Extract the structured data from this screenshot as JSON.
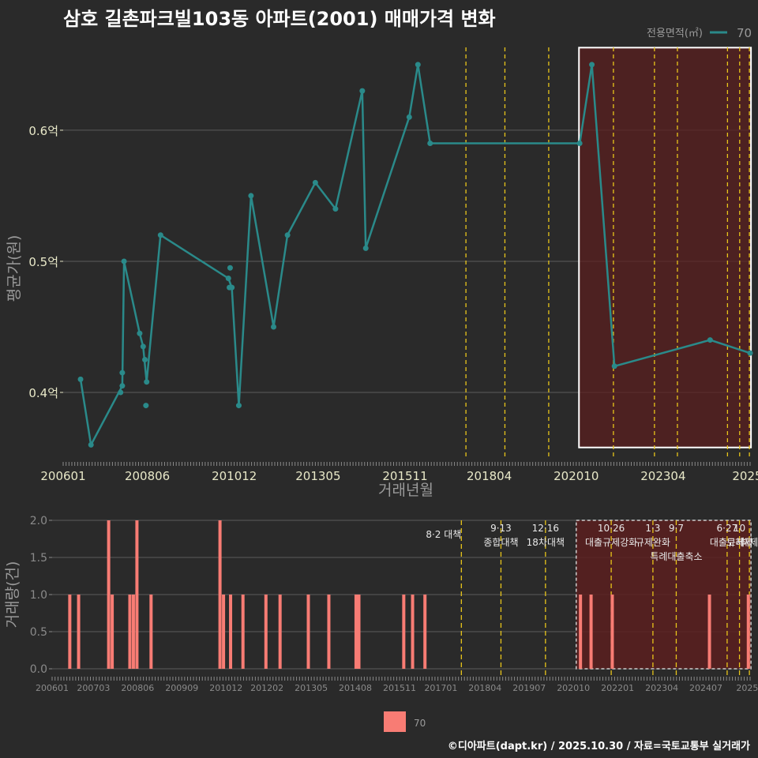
{
  "title": "삼호 길촌파크빌103동 아파트(2001) 매매가격 변화",
  "footer": "©디아파트(dapt.kr) / 2025.10.30 / 자료=국토교통부 실거래가",
  "colors": {
    "background": "#2a2a2a",
    "line": "#2a8a8a",
    "bar": "#f87c74",
    "highlight_fill": "#5a1f1f",
    "policy_line": "#e8c51a",
    "grid": "#5c5c5c",
    "axis_text": "#e8e8c8",
    "label_text": "#9a9a9a"
  },
  "chart_data": [
    {
      "type": "line",
      "name": "price",
      "ylabel": "평균가(원)",
      "xlabel": "거래년월",
      "legend_title": "전용면적(㎡)",
      "legend_label": "70",
      "xlim": [
        2006.0,
        2025.75
      ],
      "ylim": [
        0.35,
        0.665
      ],
      "yticks": [
        0.4,
        0.5,
        0.6
      ],
      "ytick_labels": [
        "0.4억",
        "0.5억",
        "0.6억"
      ],
      "xticks": [
        2006.0,
        2008.42,
        2010.92,
        2013.33,
        2015.83,
        2018.25,
        2020.75,
        2023.25,
        2025.67
      ],
      "xtick_labels": [
        "200601",
        "200806",
        "201012",
        "201305",
        "201511",
        "201804",
        "202010",
        "202304",
        "2025"
      ],
      "series_points": [
        [
          2006.5,
          0.41
        ],
        [
          2006.8,
          0.36
        ],
        [
          2007.7,
          0.405
        ],
        [
          2007.75,
          0.5
        ],
        [
          2008.2,
          0.445
        ],
        [
          2008.3,
          0.435
        ],
        [
          2008.4,
          0.408
        ],
        [
          2008.8,
          0.52
        ],
        [
          2010.75,
          0.487
        ],
        [
          2010.85,
          0.48
        ],
        [
          2011.05,
          0.39
        ],
        [
          2011.4,
          0.55
        ],
        [
          2012.05,
          0.45
        ],
        [
          2012.45,
          0.52
        ],
        [
          2013.25,
          0.56
        ],
        [
          2013.83,
          0.54
        ],
        [
          2014.6,
          0.63
        ],
        [
          2014.7,
          0.51
        ],
        [
          2015.95,
          0.61
        ],
        [
          2016.2,
          0.65
        ],
        [
          2016.55,
          0.59
        ],
        [
          2020.85,
          0.59
        ],
        [
          2021.2,
          0.65
        ],
        [
          2021.85,
          0.42
        ],
        [
          2024.6,
          0.44
        ],
        [
          2025.75,
          0.43
        ]
      ],
      "extra_points": [
        [
          2007.7,
          0.415
        ],
        [
          2007.65,
          0.4
        ],
        [
          2008.35,
          0.425
        ],
        [
          2008.38,
          0.39
        ],
        [
          2010.8,
          0.495
        ],
        [
          2010.78,
          0.48
        ]
      ],
      "policy_lines": [
        2017.58,
        2018.7,
        2019.96,
        2021.82,
        2023.0,
        2023.66,
        2025.1,
        2025.45,
        2025.73
      ],
      "highlight_range": [
        2020.83,
        2025.73
      ]
    },
    {
      "type": "bar",
      "name": "volume",
      "ylabel": "거래량(건)",
      "ylim": [
        0,
        2.0
      ],
      "yticks": [
        0.0,
        0.5,
        1.0,
        1.5,
        2.0
      ],
      "ytick_labels": [
        "0.0",
        "0.5",
        "1.0",
        "1.5",
        "2.0"
      ],
      "xtick_labels": [
        "200601",
        "200703",
        "200806",
        "200909",
        "201012",
        "201202",
        "201305",
        "201408",
        "201511",
        "201701",
        "201804",
        "201907",
        "202010",
        "202201",
        "202304",
        "202407",
        "2025"
      ],
      "xticks": [
        2006.0,
        2007.17,
        2008.42,
        2009.67,
        2010.92,
        2012.08,
        2013.33,
        2014.58,
        2015.83,
        2017.0,
        2018.25,
        2019.5,
        2020.75,
        2022.0,
        2023.25,
        2024.5,
        2025.67
      ],
      "bars": [
        [
          2006.5,
          1
        ],
        [
          2006.75,
          1
        ],
        [
          2007.6,
          2
        ],
        [
          2007.7,
          1
        ],
        [
          2008.2,
          1
        ],
        [
          2008.3,
          1
        ],
        [
          2008.4,
          2
        ],
        [
          2008.8,
          1
        ],
        [
          2010.75,
          2
        ],
        [
          2010.85,
          1
        ],
        [
          2011.05,
          1
        ],
        [
          2011.4,
          1
        ],
        [
          2012.05,
          1
        ],
        [
          2012.45,
          1
        ],
        [
          2013.25,
          1
        ],
        [
          2013.83,
          1
        ],
        [
          2014.6,
          1
        ],
        [
          2014.68,
          1
        ],
        [
          2015.95,
          1
        ],
        [
          2016.2,
          1
        ],
        [
          2016.55,
          1
        ],
        [
          2020.95,
          1
        ],
        [
          2021.25,
          1
        ],
        [
          2021.85,
          1
        ],
        [
          2024.6,
          1
        ],
        [
          2025.7,
          1
        ]
      ],
      "legend_label": "70"
    }
  ],
  "policies": [
    {
      "x": 2017.58,
      "date": "8·2 대책",
      "label": ""
    },
    {
      "x": 2018.7,
      "date": "9·13",
      "label": "종합대책"
    },
    {
      "x": 2019.96,
      "date": "12·16",
      "label": "18차대책"
    },
    {
      "x": 2021.82,
      "date": "10·26",
      "label": "대출규제강화"
    },
    {
      "x": 2023.0,
      "date": "1·3",
      "label": "규제완화"
    },
    {
      "x": 2023.66,
      "date": "9·7",
      "label": "특례대출축소"
    },
    {
      "x": 2025.1,
      "date": "6·27",
      "label": "대출규제"
    },
    {
      "x": 2025.45,
      "date": "10",
      "label": "토허제"
    },
    {
      "x": 2025.73,
      "date": "",
      "label": "해제"
    }
  ]
}
